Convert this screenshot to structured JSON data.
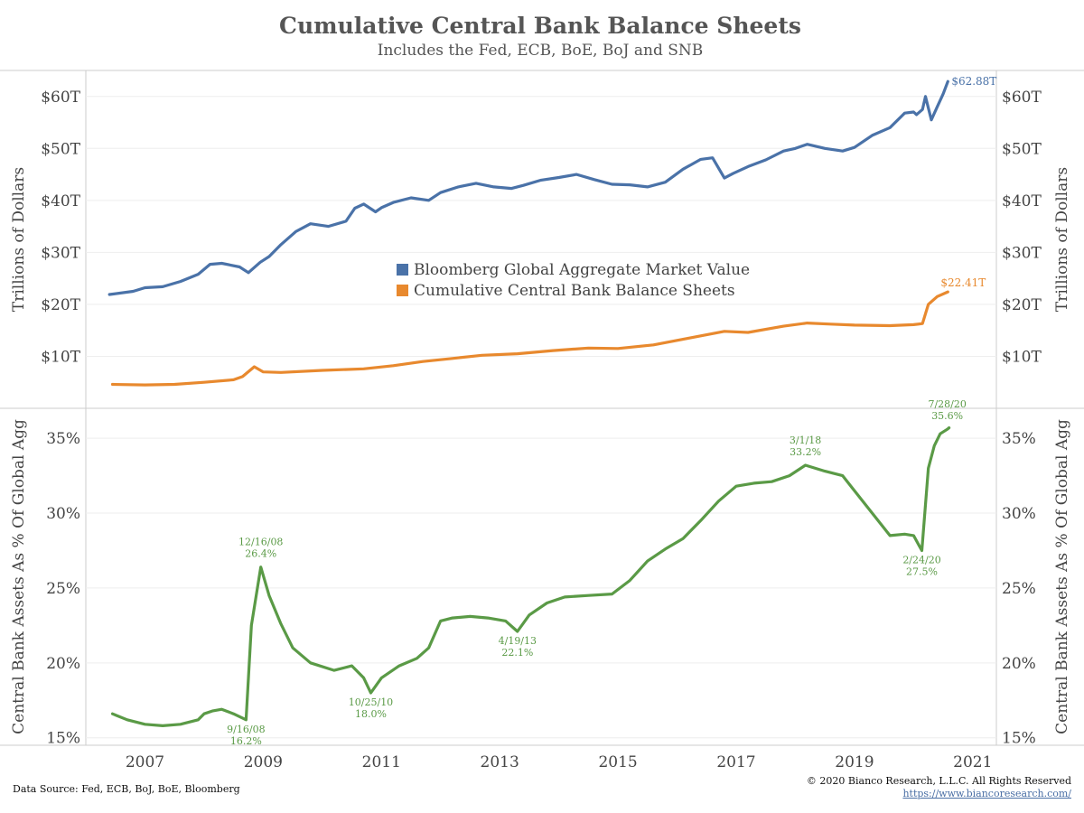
{
  "header": {
    "title": "Cumulative Central Bank Balance Sheets",
    "subtitle": "Includes the Fed, ECB, BoE, BoJ and SNB"
  },
  "footer": {
    "source": "Data Source: Fed, ECB, BoJ, BoE, Bloomberg",
    "copyright": "© 2020 Bianco Research, L.L.C. All Rights Reserved",
    "url": "https://www.biancoresearch.com/"
  },
  "colors": {
    "blue": "#4a72a8",
    "orange": "#e8892e",
    "green": "#5a9a46",
    "axis": "#cccccc",
    "grid": "#eeeeee"
  },
  "chart_data": [
    {
      "type": "line",
      "ylabel": "Trillions of Dollars",
      "ylim": [
        0,
        65
      ],
      "yticks": [
        10,
        20,
        30,
        40,
        50,
        60
      ],
      "ytick_labels": [
        "$10T",
        "$20T",
        "$30T",
        "$40T",
        "$50T",
        "$60T"
      ],
      "xlim": [
        2006.0,
        2021.4
      ],
      "xticks": [
        2007,
        2009,
        2011,
        2013,
        2015,
        2017,
        2019,
        2021
      ],
      "xtick_labels": [
        "2007",
        "2009",
        "2011",
        "2013",
        "2015",
        "2017",
        "2019",
        "2021"
      ],
      "legend_placement": "center",
      "series": [
        {
          "name": "Bloomberg Global Aggregate Market Value",
          "color": "#4a72a8",
          "x": [
            2006.4,
            2006.8,
            2007.0,
            2007.3,
            2007.6,
            2007.9,
            2008.1,
            2008.3,
            2008.6,
            2008.75,
            2008.95,
            2009.1,
            2009.3,
            2009.55,
            2009.8,
            2010.1,
            2010.4,
            2010.55,
            2010.7,
            2010.9,
            2011.0,
            2011.2,
            2011.5,
            2011.8,
            2012.0,
            2012.3,
            2012.6,
            2012.9,
            2013.2,
            2013.4,
            2013.7,
            2014.0,
            2014.3,
            2014.6,
            2014.9,
            2015.2,
            2015.5,
            2015.8,
            2016.1,
            2016.4,
            2016.6,
            2016.8,
            2016.95,
            2017.2,
            2017.5,
            2017.8,
            2018.0,
            2018.2,
            2018.5,
            2018.8,
            2019.0,
            2019.3,
            2019.6,
            2019.85,
            2020.0,
            2020.05,
            2020.15,
            2020.2,
            2020.3,
            2020.4,
            2020.5,
            2020.58
          ],
          "values": [
            21.9,
            22.5,
            23.2,
            23.4,
            24.4,
            25.8,
            27.7,
            27.9,
            27.2,
            26.1,
            28.1,
            29.2,
            31.5,
            34.0,
            35.5,
            35.0,
            36.0,
            38.5,
            39.3,
            37.8,
            38.6,
            39.6,
            40.5,
            40.0,
            41.5,
            42.6,
            43.3,
            42.6,
            42.3,
            42.9,
            43.9,
            44.4,
            45.0,
            44.0,
            43.1,
            43.0,
            42.6,
            43.5,
            46.0,
            47.9,
            48.2,
            44.3,
            45.2,
            46.5,
            47.8,
            49.5,
            50.0,
            50.8,
            50.0,
            49.5,
            50.2,
            52.5,
            54.0,
            56.8,
            57.0,
            56.5,
            57.5,
            60.0,
            55.5,
            58.0,
            60.5,
            62.88
          ],
          "end_label": "$62.88T"
        },
        {
          "name": "Cumulative Central Bank Balance Sheets",
          "color": "#e8892e",
          "x": [
            2006.45,
            2007.0,
            2007.5,
            2008.0,
            2008.5,
            2008.65,
            2008.85,
            2009.0,
            2009.3,
            2010.0,
            2010.7,
            2011.2,
            2011.7,
            2012.2,
            2012.7,
            2013.3,
            2013.9,
            2014.5,
            2015.0,
            2015.6,
            2016.2,
            2016.8,
            2017.2,
            2017.8,
            2018.2,
            2018.6,
            2019.0,
            2019.6,
            2020.0,
            2020.15,
            2020.25,
            2020.4,
            2020.58
          ],
          "values": [
            4.6,
            4.5,
            4.6,
            5.0,
            5.5,
            6.1,
            8.0,
            7.0,
            6.9,
            7.3,
            7.6,
            8.2,
            9.0,
            9.6,
            10.2,
            10.5,
            11.1,
            11.6,
            11.5,
            12.2,
            13.5,
            14.8,
            14.6,
            15.8,
            16.4,
            16.2,
            16.0,
            15.9,
            16.1,
            16.3,
            20.0,
            21.5,
            22.41
          ],
          "end_label": "$22.41T"
        }
      ]
    },
    {
      "type": "line",
      "ylabel": "Central Bank Assets As % Of Global Agg",
      "ylim": [
        14.5,
        37
      ],
      "yticks": [
        15,
        20,
        25,
        30,
        35
      ],
      "ytick_labels": [
        "15%",
        "20%",
        "25%",
        "30%",
        "35%"
      ],
      "xlim": [
        2006.0,
        2021.4
      ],
      "xticks": [
        2007,
        2009,
        2011,
        2013,
        2015,
        2017,
        2019,
        2021
      ],
      "xtick_labels": [
        "2007",
        "2009",
        "2011",
        "2013",
        "2015",
        "2017",
        "2019",
        "2021"
      ],
      "series": [
        {
          "color": "#5a9a46",
          "x": [
            2006.45,
            2006.7,
            2007.0,
            2007.3,
            2007.6,
            2007.9,
            2008.0,
            2008.15,
            2008.3,
            2008.5,
            2008.71,
            2008.8,
            2008.96,
            2009.1,
            2009.3,
            2009.5,
            2009.8,
            2010.2,
            2010.5,
            2010.7,
            2010.82,
            2011.0,
            2011.3,
            2011.6,
            2011.8,
            2012.0,
            2012.2,
            2012.5,
            2012.8,
            2013.1,
            2013.3,
            2013.5,
            2013.8,
            2014.1,
            2014.5,
            2014.9,
            2015.2,
            2015.5,
            2015.8,
            2016.1,
            2016.4,
            2016.7,
            2017.0,
            2017.3,
            2017.6,
            2017.9,
            2018.17,
            2018.5,
            2018.8,
            2019.0,
            2019.3,
            2019.6,
            2019.85,
            2020.0,
            2020.14,
            2020.25,
            2020.35,
            2020.45,
            2020.57,
            2020.6
          ],
          "values": [
            16.6,
            16.2,
            15.9,
            15.8,
            15.9,
            16.2,
            16.6,
            16.8,
            16.9,
            16.6,
            16.2,
            22.5,
            26.4,
            24.5,
            22.6,
            21.0,
            20.0,
            19.5,
            19.8,
            19.0,
            18.0,
            19.0,
            19.8,
            20.3,
            21.0,
            22.8,
            23.0,
            23.1,
            23.0,
            22.8,
            22.1,
            23.2,
            24.0,
            24.4,
            24.5,
            24.6,
            25.5,
            26.8,
            27.6,
            28.3,
            29.5,
            30.8,
            31.8,
            32.0,
            32.1,
            32.5,
            33.2,
            32.8,
            32.5,
            31.5,
            30.0,
            28.5,
            28.6,
            28.5,
            27.5,
            33.0,
            34.5,
            35.3,
            35.6,
            35.7
          ]
        }
      ],
      "annotations": [
        {
          "x": 2008.96,
          "y": 26.4,
          "date": "12/16/08",
          "value": "26.4%",
          "position": "above"
        },
        {
          "x": 2008.71,
          "y": 16.2,
          "date": "9/16/08",
          "value": "16.2%",
          "position": "below"
        },
        {
          "x": 2010.82,
          "y": 18.0,
          "date": "10/25/10",
          "value": "18.0%",
          "position": "below"
        },
        {
          "x": 2013.3,
          "y": 22.1,
          "date": "4/19/13",
          "value": "22.1%",
          "position": "below"
        },
        {
          "x": 2018.17,
          "y": 33.2,
          "date": "3/1/18",
          "value": "33.2%",
          "position": "above"
        },
        {
          "x": 2020.14,
          "y": 27.5,
          "date": "2/24/20",
          "value": "27.5%",
          "position": "below"
        },
        {
          "x": 2020.57,
          "y": 35.6,
          "date": "7/28/20",
          "value": "35.6%",
          "position": "above"
        }
      ]
    }
  ]
}
